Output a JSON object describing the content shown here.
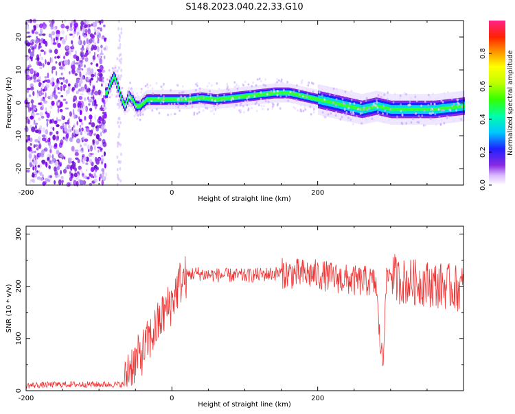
{
  "page": {
    "title": "S148.2023.040.22.33.G10"
  },
  "chart_data": [
    {
      "type": "heatmap",
      "xlabel": "Height of straight line (km)",
      "ylabel": "Frequency (Hz)",
      "xlim": [
        -200,
        400
      ],
      "ylim": [
        -25,
        25
      ],
      "x_ticks": [
        -200,
        0,
        200
      ],
      "y_ticks": [
        20,
        10,
        0,
        -10,
        -20
      ],
      "x_tick_labels": [
        "-200",
        "0",
        "200"
      ],
      "y_tick_labels": [
        "20",
        "10",
        "0",
        "-10",
        "-20"
      ],
      "colorbar": {
        "label": "Normalized spectral amplitude",
        "range": [
          0,
          1
        ],
        "ticks": [
          0.0,
          0.2,
          0.4,
          0.6,
          0.8
        ],
        "tick_labels": [
          "0.0",
          "0.2",
          "0.4",
          "0.6",
          "0.8"
        ]
      },
      "ridge": {
        "x": [
          -90,
          -85,
          -80,
          -75,
          -70,
          -65,
          -60,
          -55,
          -50,
          -45,
          -40,
          -35,
          -30,
          -20,
          0,
          20,
          40,
          60,
          80,
          100,
          120,
          140,
          160,
          180,
          200,
          220,
          240,
          260,
          280,
          300,
          320,
          340,
          360,
          380,
          400
        ],
        "y": [
          3,
          6,
          8,
          5,
          1,
          -1,
          2,
          1,
          -1,
          -1,
          0,
          1,
          1,
          1,
          1,
          1,
          1.5,
          1,
          1.5,
          2,
          2.5,
          3,
          3,
          2,
          1,
          0,
          -1,
          -2,
          -1,
          -2,
          -2,
          -2,
          -2,
          -1.5,
          -1
        ]
      },
      "noise_region_x": [
        -200,
        -90
      ]
    },
    {
      "type": "line",
      "xlabel": "Height of straight line (km)",
      "ylabel": "SNR (10 * v/v)",
      "xlim": [
        -200,
        400
      ],
      "ylim": [
        0,
        315
      ],
      "x_ticks": [
        -200,
        0,
        200
      ],
      "y_ticks": [
        0,
        100,
        200,
        300
      ],
      "x_tick_labels": [
        "-200",
        "0",
        "200"
      ],
      "y_tick_labels": [
        "0",
        "100",
        "200",
        "300"
      ],
      "series": [
        {
          "color": "#ee3333",
          "x": [
            -200,
            -150,
            -100,
            -65,
            -60,
            -50,
            -40,
            -30,
            -20,
            -10,
            0,
            10,
            20,
            30,
            50,
            100,
            150,
            200,
            250,
            270,
            280,
            285,
            290,
            293,
            300,
            310,
            330,
            350,
            400
          ],
          "y": [
            10,
            12,
            12,
            12,
            45,
            55,
            75,
            100,
            125,
            150,
            170,
            205,
            220,
            225,
            222,
            220,
            225,
            222,
            210,
            210,
            205,
            100,
            50,
            205,
            230,
            210,
            208,
            205,
            195
          ]
        }
      ]
    }
  ]
}
